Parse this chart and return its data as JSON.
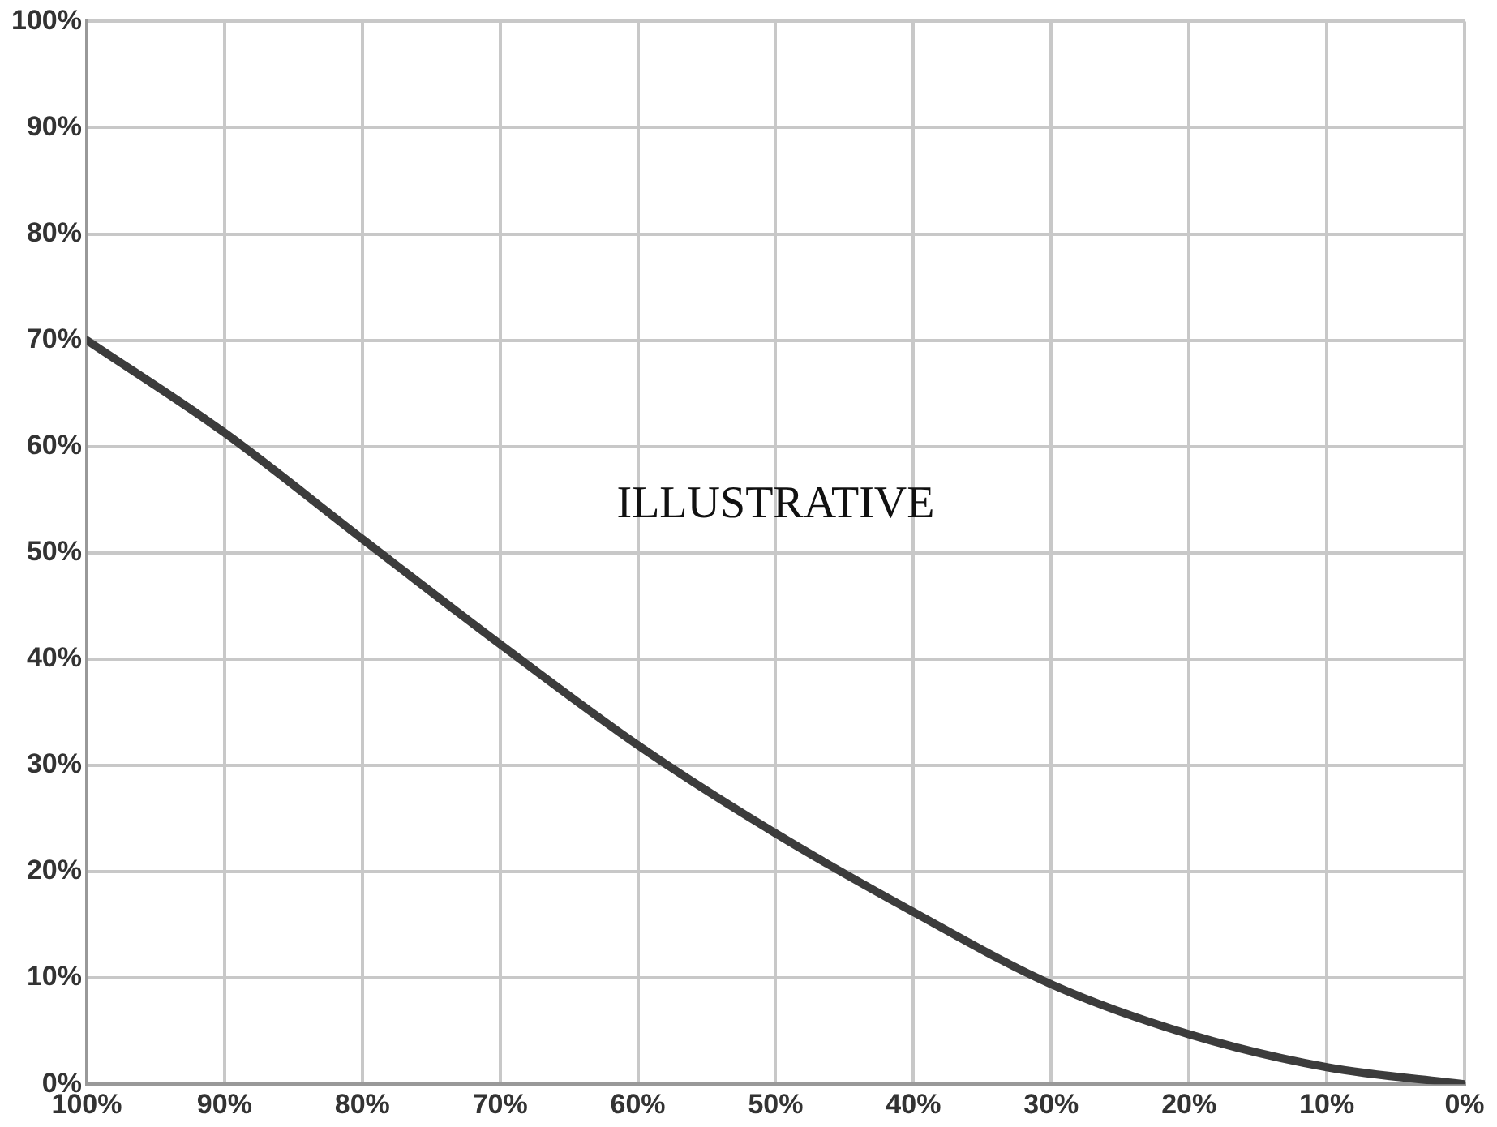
{
  "chart_data": {
    "type": "line",
    "x": [
      100,
      90,
      80,
      70,
      60,
      50,
      40,
      30,
      20,
      10,
      0
    ],
    "series": [
      {
        "color": "#3c3c3c",
        "values": [
          70,
          61.3,
          51.3,
          41.4,
          31.9,
          23.6,
          16.2,
          9.4,
          4.7,
          1.6,
          0
        ]
      }
    ],
    "xlim": [
      100,
      0
    ],
    "ylim": [
      0,
      100
    ],
    "xticks": [
      {
        "value": 100,
        "label": "100%"
      },
      {
        "value": 90,
        "label": "90%"
      },
      {
        "value": 80,
        "label": "80%"
      },
      {
        "value": 70,
        "label": "70%"
      },
      {
        "value": 60,
        "label": "60%"
      },
      {
        "value": 50,
        "label": "50%"
      },
      {
        "value": 40,
        "label": "40%"
      },
      {
        "value": 30,
        "label": "30%"
      },
      {
        "value": 20,
        "label": "20%"
      },
      {
        "value": 10,
        "label": "10%"
      },
      {
        "value": 0,
        "label": "0%"
      }
    ],
    "yticks": [
      {
        "value": 0,
        "label": "0%"
      },
      {
        "value": 10,
        "label": "10%"
      },
      {
        "value": 20,
        "label": "20%"
      },
      {
        "value": 30,
        "label": "30%"
      },
      {
        "value": 40,
        "label": "40%"
      },
      {
        "value": 50,
        "label": "50%"
      },
      {
        "value": 60,
        "label": "60%"
      },
      {
        "value": 70,
        "label": "70%"
      },
      {
        "value": 80,
        "label": "80%"
      },
      {
        "value": 90,
        "label": "90%"
      },
      {
        "value": 100,
        "label": "100%"
      }
    ],
    "annotations": [
      "ILLUSTRATIVE"
    ],
    "grid": true,
    "legend": false,
    "marker": "none",
    "line_style": "solid"
  }
}
